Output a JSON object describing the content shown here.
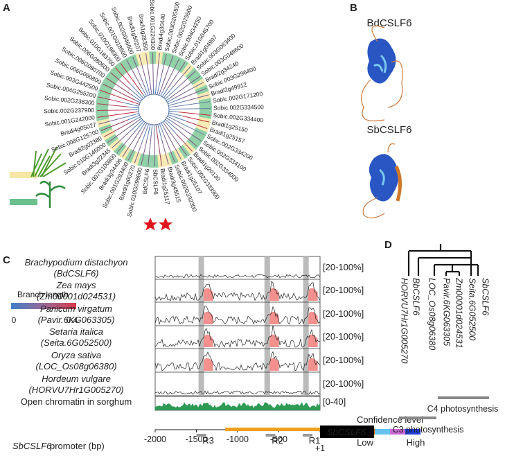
{
  "panel_labels": [
    "A",
    "B",
    "C",
    "D"
  ],
  "tree": {
    "leaves": [
      {
        "name": "Sobic.002G171200",
        "color": "#6b7fa8"
      },
      {
        "name": "Sobic.002G334500",
        "color": "#6b7fa8"
      },
      {
        "name": "Sobic.002G334400",
        "color": "#c0283a"
      },
      {
        "name": "Bradi1g25150",
        "color": "#c0283a"
      },
      {
        "name": "Bradi1g25157",
        "color": "#b23a5a"
      },
      {
        "name": "Sobic.002G334200",
        "color": "#6b7fa8"
      },
      {
        "name": "Sobic.002G334100",
        "color": "#7a5a8a"
      },
      {
        "name": "Sobic.002G334000",
        "color": "#7a5a8a"
      },
      {
        "name": "Bradi1g20130",
        "color": "#9a3a5a"
      },
      {
        "name": "Sobic.002G333900",
        "color": "#7a5a8a"
      },
      {
        "name": "Bradi1g25107",
        "color": "#7a5a8a"
      },
      {
        "name": "Sobic.002G333300",
        "color": "#7a5a8a"
      },
      {
        "name": "Bradi3g45515",
        "color": "#7a5a8a"
      },
      {
        "name": "Bradi1g25117",
        "color": "#9a3a5a"
      },
      {
        "name": "SbCSLF6",
        "color": "#7a5a8a"
      },
      {
        "name": "BdCSLF6",
        "color": "#7a5a8a"
      },
      {
        "name": "Sobic.010G098600",
        "color": "#7a5a8a"
      },
      {
        "name": "Bradi1g00270",
        "color": "#7a5a8a"
      },
      {
        "name": "Sobic.001G283400",
        "color": "#7a5a8a"
      },
      {
        "name": "Bradi3g34496",
        "color": "#7a5a8a"
      },
      {
        "name": "Sobic.007G100800",
        "color": "#7a5a8a"
      },
      {
        "name": "Bradi3g22345",
        "color": "#7a5a8a"
      },
      {
        "name": "Sobic.010G146000",
        "color": "#7a5a8a"
      },
      {
        "name": "Bradi2g03380",
        "color": "#9a3a5a"
      },
      {
        "name": "Sobic.008G125700",
        "color": "#9a3a5a"
      },
      {
        "name": "Bradi4g05027",
        "color": "#7a5a8a"
      },
      {
        "name": "Sobic.001G242000",
        "color": "#c0283a"
      },
      {
        "name": "Sobic.002G237900",
        "color": "#b23a5a"
      },
      {
        "name": "Sobic.002G238300",
        "color": "#b23a5a"
      },
      {
        "name": "Sobic.004G255200",
        "color": "#b23a5a"
      },
      {
        "name": "Sobic.003G442500",
        "color": "#c0283a"
      },
      {
        "name": "Sobic.006G080800",
        "color": "#9a3a5a"
      },
      {
        "name": "Sobic.006G080700",
        "color": "#9a3a5a"
      },
      {
        "name": "Sobic.006G080600",
        "color": "#9a3a5a"
      },
      {
        "name": "Sobic.010G183700",
        "color": "#c0283a"
      },
      {
        "name": "Sobic.010G198300",
        "color": "#c0283a"
      },
      {
        "name": "Sobic.001G018500",
        "color": "#7a5a8a"
      },
      {
        "name": "Sobic.002G046600",
        "color": "#7a5a8a"
      },
      {
        "name": "Bradi1g56207",
        "color": "#7a5a8a"
      },
      {
        "name": "Bradi1g28350",
        "color": "#7a5a8a"
      },
      {
        "name": "Sobic.001G224300",
        "color": "#7a5a8a"
      },
      {
        "name": "Bradi4g30440",
        "color": "#7a5a8a"
      },
      {
        "name": "Sobic.003G205500",
        "color": "#7a5a8a"
      },
      {
        "name": "Sobic.002G075500",
        "color": "#7a5a8a"
      },
      {
        "name": "Sobic.004G4250",
        "color": "#7a5a8a"
      },
      {
        "name": "Sobic.01G045700",
        "color": "#7a5a8a"
      },
      {
        "name": "Bradi1g04997",
        "color": "#7a5a8a"
      },
      {
        "name": "Sobic.003G063400",
        "color": "#7a5a8a"
      },
      {
        "name": "Sobic.003G049600",
        "color": "#7a5a8a"
      },
      {
        "name": "Bradi2g34240",
        "color": "#7a5a8a"
      },
      {
        "name": "Sobic.003G296400",
        "color": "#7a5a8a"
      },
      {
        "name": "Bradi2g49912",
        "color": "#7a5a8a"
      }
    ],
    "legend": {
      "title": "Branch length",
      "min": 0,
      "max": 0.4
    }
  },
  "structures": {
    "proteins": [
      "BdCSLF6",
      "SbCSLF6"
    ],
    "legend": {
      "title": "Confidence level",
      "low": "Low",
      "high": "High",
      "colors": [
        "#c8601c",
        "#66c3ee",
        "#c96ad0",
        "#1f3fd8"
      ]
    }
  },
  "promoter": {
    "tracks": [
      {
        "species": "Brachypodium distachyon",
        "gene": "(BdCSLF6)",
        "range": "[20-100%]"
      },
      {
        "species": "Zea mays",
        "gene": "(Zm00001d024531)",
        "range": "[20-100%]"
      },
      {
        "species": "Panicum virgatum",
        "gene": "(Pavir.6KG063305)",
        "range": "[20-100%]"
      },
      {
        "species": "Setaria italica",
        "gene": "(Seita.6G052500)",
        "range": "[20-100%]"
      },
      {
        "species": "Oryza sativa",
        "gene": "(LOC_Os08g06380)",
        "range": "[20-100%]"
      },
      {
        "species": "Hordeum vulgare",
        "gene": "(HORVU7Hr1G005270)",
        "range": "[20-100%]"
      }
    ],
    "chromatin": {
      "label": "Open chromatin in sorghum",
      "range": "[0-40]"
    },
    "axis_gene": "SbCSLF6",
    "axis_label": "promoter (bp)",
    "gene_box": "SbCSLF6",
    "xlim": [
      -2000,
      1
    ],
    "xticks": [
      -2000,
      -1500,
      -1000,
      -500,
      {
        "value": 1,
        "label": "+1"
      }
    ],
    "conserved": [
      -1440,
      -640,
      -170
    ],
    "regions": [
      {
        "label": "R3",
        "center": -1440
      },
      {
        "label": "R2",
        "center": -600
      },
      {
        "label": "R1",
        "center": -150
      }
    ],
    "promoter_span": [
      -1150,
      1
    ]
  },
  "cladogram": {
    "leaves": [
      "HORVU7Hr1G005270",
      "BbCSLF6",
      "LOC_Os08g06380",
      "Pavir.6KG063305",
      "Zm00001d024531",
      "Seita.6G052500",
      "SbCSLF6"
    ],
    "groups": [
      "C4 photosynthesis",
      "C3 photosynthesis"
    ]
  }
}
